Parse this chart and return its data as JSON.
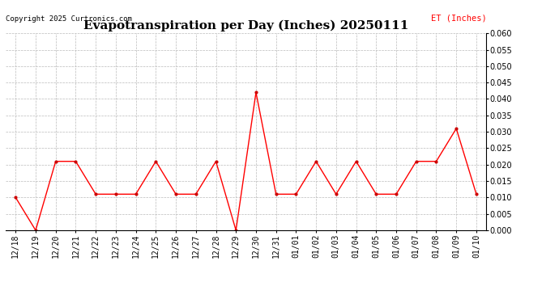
{
  "title": "Evapotranspiration per Day (Inches) 20250111",
  "copyright_text": "Copyright 2025 Curtronics.com",
  "legend_text": "ET (Inches)",
  "dates": [
    "12/18",
    "12/19",
    "12/20",
    "12/21",
    "12/22",
    "12/23",
    "12/24",
    "12/25",
    "12/26",
    "12/27",
    "12/28",
    "12/29",
    "12/30",
    "12/31",
    "01/01",
    "01/02",
    "01/03",
    "01/04",
    "01/05",
    "01/06",
    "01/07",
    "01/08",
    "01/09",
    "01/10"
  ],
  "values": [
    0.01,
    0.0,
    0.021,
    0.021,
    0.011,
    0.011,
    0.011,
    0.021,
    0.011,
    0.011,
    0.021,
    0.0,
    0.042,
    0.011,
    0.011,
    0.021,
    0.011,
    0.021,
    0.011,
    0.011,
    0.021,
    0.021,
    0.031,
    0.011
  ],
  "line_color": "#ff0000",
  "marker_color": "#cc0000",
  "background_color": "#ffffff",
  "ylim": [
    0.0,
    0.06
  ],
  "ytick_step": 0.005,
  "title_fontsize": 11,
  "copyright_fontsize": 6.5,
  "label_fontsize": 7.5,
  "tick_fontsize": 7,
  "legend_color": "#ff0000"
}
